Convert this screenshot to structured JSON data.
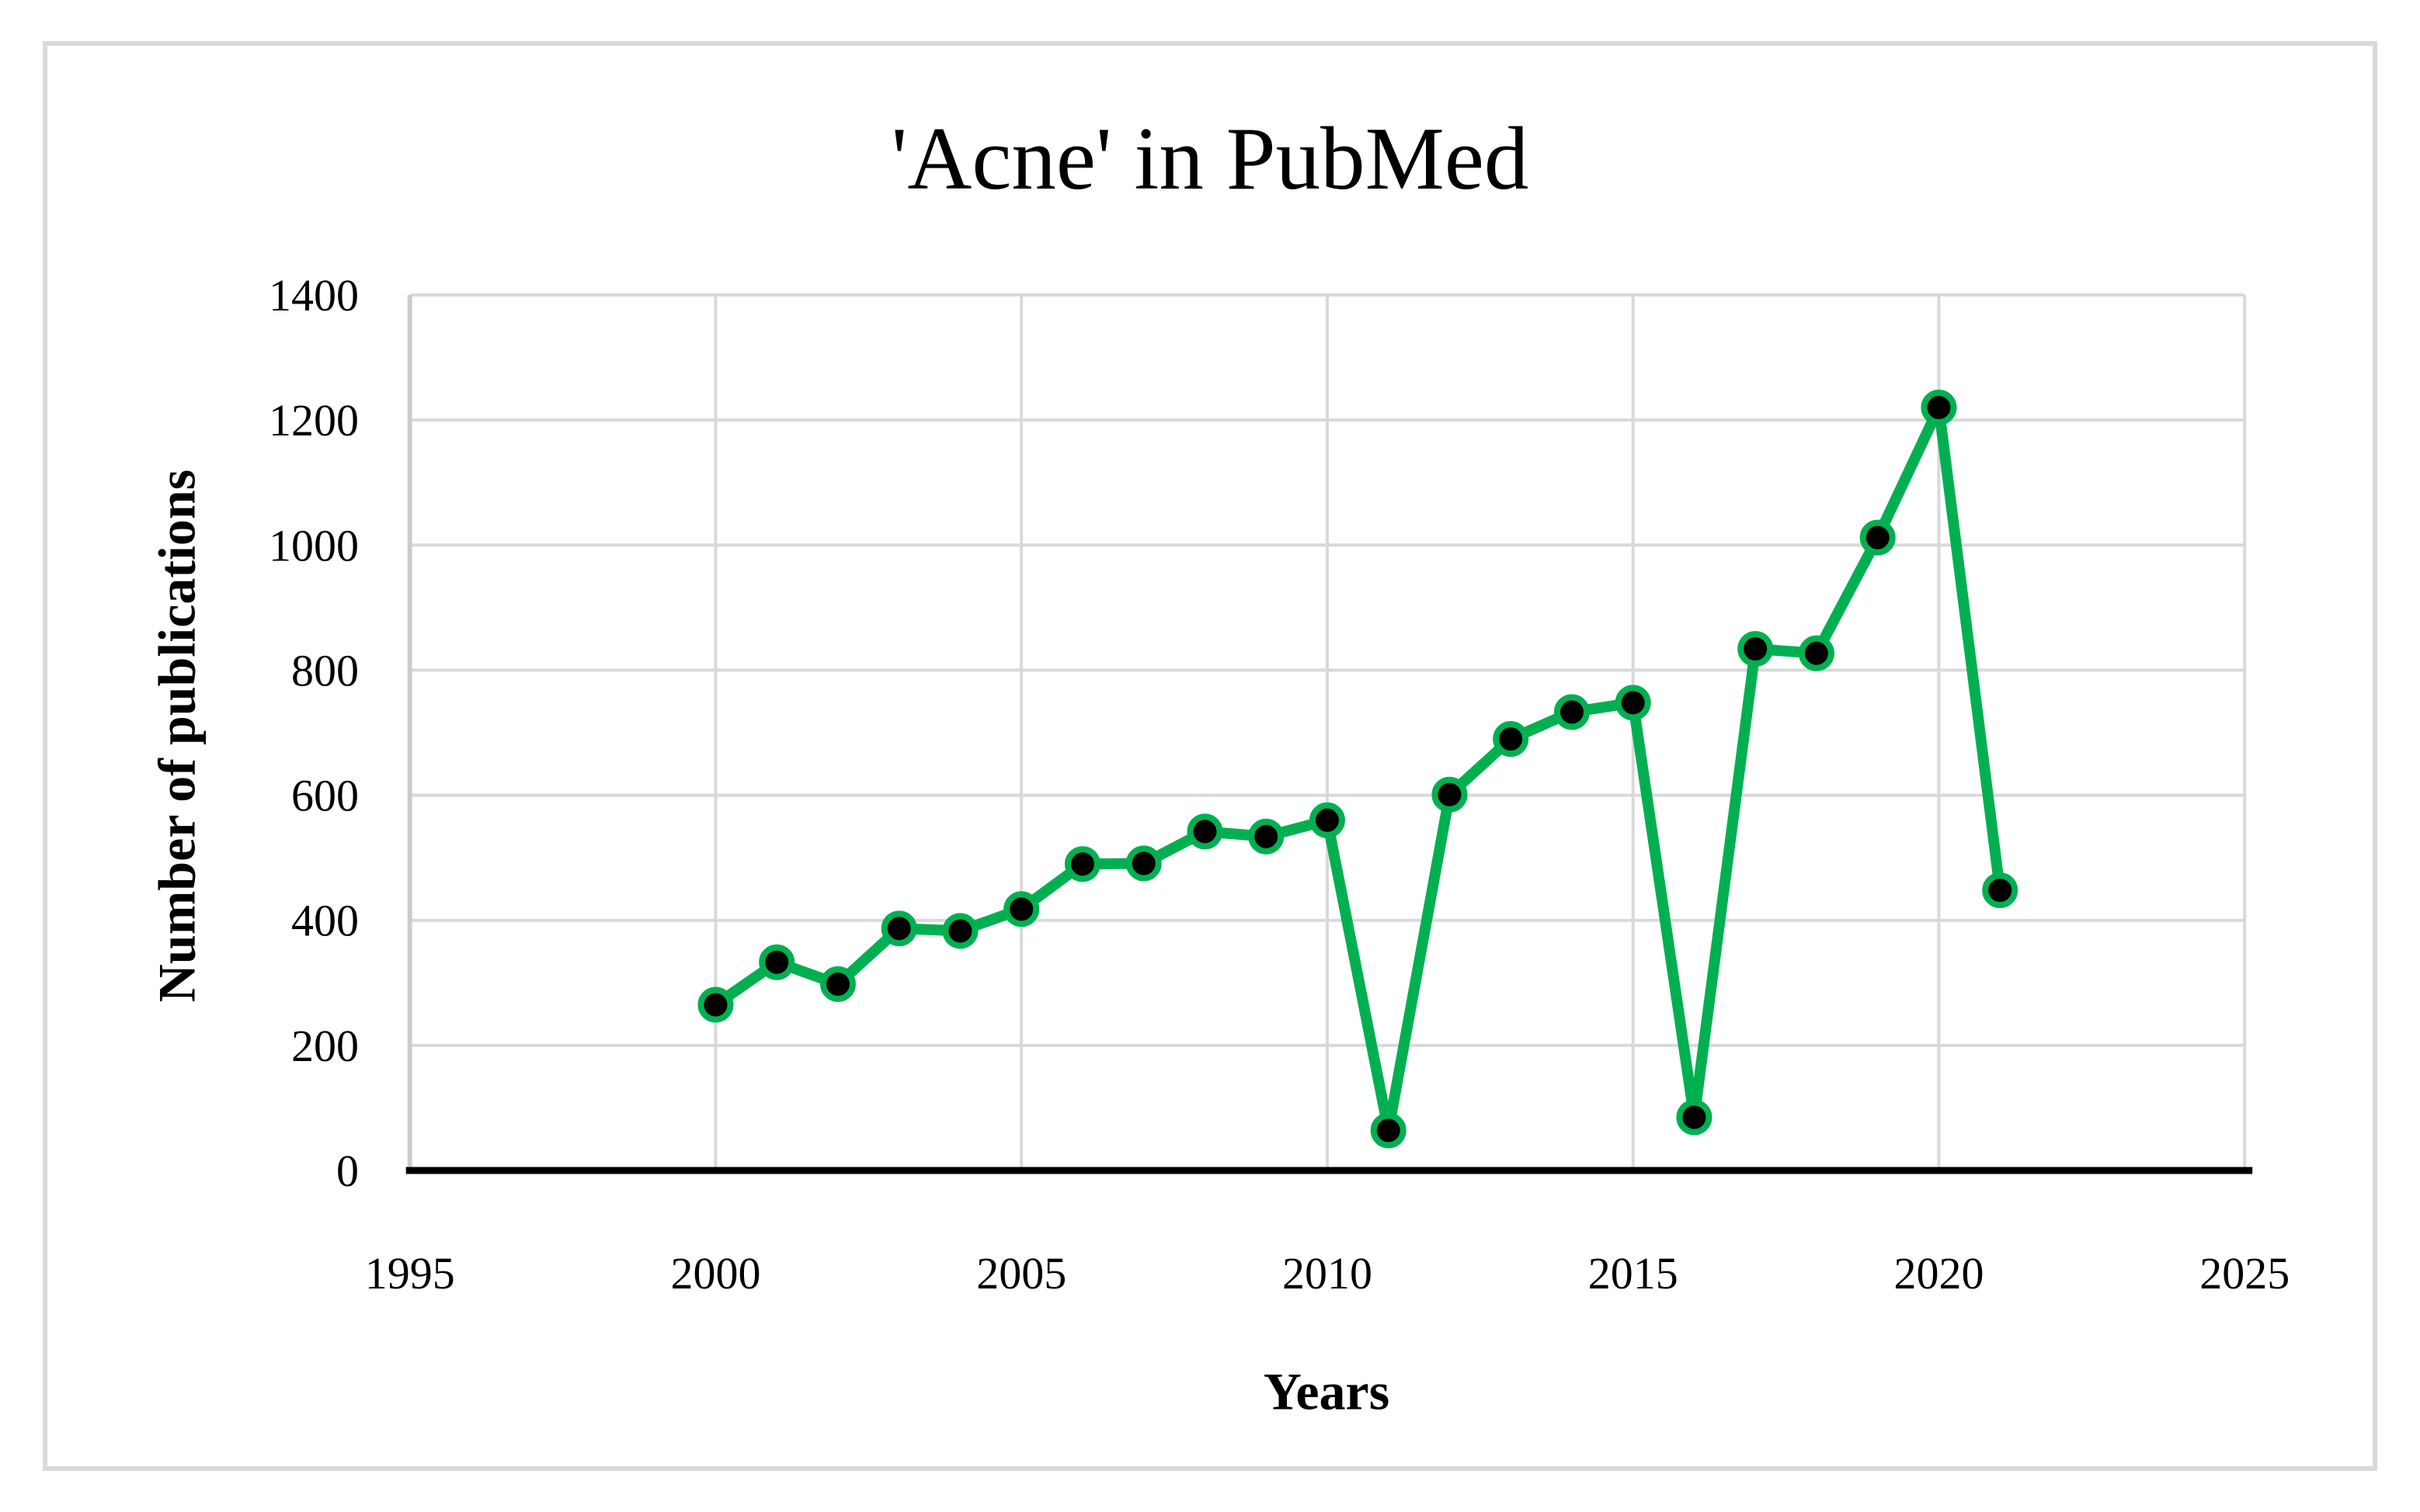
{
  "figure": {
    "title": "'Acne' in PubMed",
    "border_color": "#D9D9D9",
    "background": "#FFFFFF"
  },
  "chart_data": {
    "type": "line",
    "title": "'Acne' in PubMed",
    "xlabel": "Years",
    "ylabel": "Number of publications",
    "x": [
      2000,
      2001,
      2002,
      2003,
      2004,
      2005,
      2006,
      2007,
      2008,
      2009,
      2010,
      2011,
      2012,
      2013,
      2014,
      2015,
      2016,
      2017,
      2018,
      2019,
      2020,
      2021
    ],
    "values": [
      265,
      333,
      298,
      387,
      383,
      418,
      490,
      491,
      542,
      534,
      560,
      64,
      601,
      690,
      733,
      748,
      85,
      834,
      827,
      1012,
      1220,
      448
    ],
    "xlim": [
      1995,
      2025
    ],
    "ylim": [
      0,
      1400
    ],
    "x_ticks": [
      1995,
      2000,
      2005,
      2010,
      2015,
      2020,
      2025
    ],
    "y_ticks": [
      0,
      200,
      400,
      600,
      800,
      1000,
      1200,
      1400
    ],
    "grid": true,
    "legend_position": "none",
    "line_color": "#00B050",
    "marker_fill": "#000000",
    "gridline_color": "#D9D9D9",
    "axis_line_color": "#CCCCCC",
    "x_axis_color": "#000000",
    "tick_label_color": "#000000"
  }
}
